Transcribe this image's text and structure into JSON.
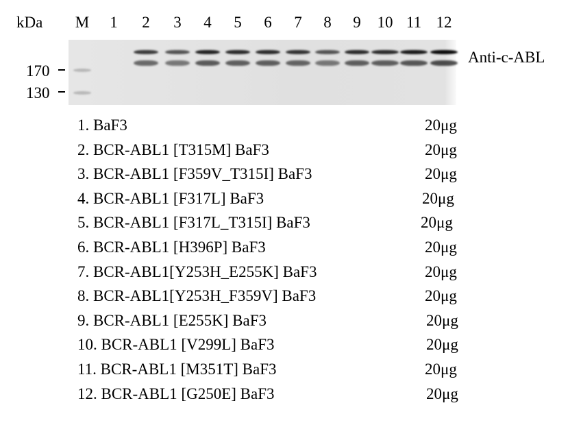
{
  "header": {
    "kda_label": "kDa",
    "lanes": [
      "M",
      "1",
      "2",
      "3",
      "4",
      "5",
      "6",
      "7",
      "8",
      "9",
      "10",
      "11",
      "12"
    ]
  },
  "markers": [
    {
      "label": "170"
    },
    {
      "label": "130"
    }
  ],
  "antibody_label": "Anti-c-ABL",
  "band_intensity": [
    0,
    0,
    0.7,
    0.55,
    0.85,
    0.8,
    0.8,
    0.75,
    0.55,
    0.8,
    0.8,
    0.9,
    1.0
  ],
  "samples": [
    {
      "name": "1. BaF3",
      "amount": "20μg"
    },
    {
      "name": "2. BCR-ABL1 [T315M] BaF3",
      "amount": "20μg"
    },
    {
      "name": "3. BCR-ABL1 [F359V_T315I] BaF3",
      "amount": "20μg"
    },
    {
      "name": "4. BCR-ABL1 [F317L] BaF3",
      "amount": "20μg"
    },
    {
      "name": "5. BCR-ABL1 [F317L_T315I] BaF3",
      "amount": "20μg"
    },
    {
      "name": "6. BCR-ABL1 [H396P] BaF3",
      "amount": "20μg"
    },
    {
      "name": "7. BCR-ABL1[Y253H_E255K] BaF3",
      "amount": "20μg"
    },
    {
      "name": "8. BCR-ABL1[Y253H_F359V] BaF3",
      "amount": "20μg"
    },
    {
      "name": "9. BCR-ABL1 [E255K] BaF3",
      "amount": "20μg"
    },
    {
      "name": "10. BCR-ABL1 [V299L] BaF3",
      "amount": "20μg"
    },
    {
      "name": "11. BCR-ABL1 [M351T] BaF3",
      "amount": "20μg"
    },
    {
      "name": "12. BCR-ABL1 [G250E] BaF3",
      "amount": "20μg"
    }
  ]
}
